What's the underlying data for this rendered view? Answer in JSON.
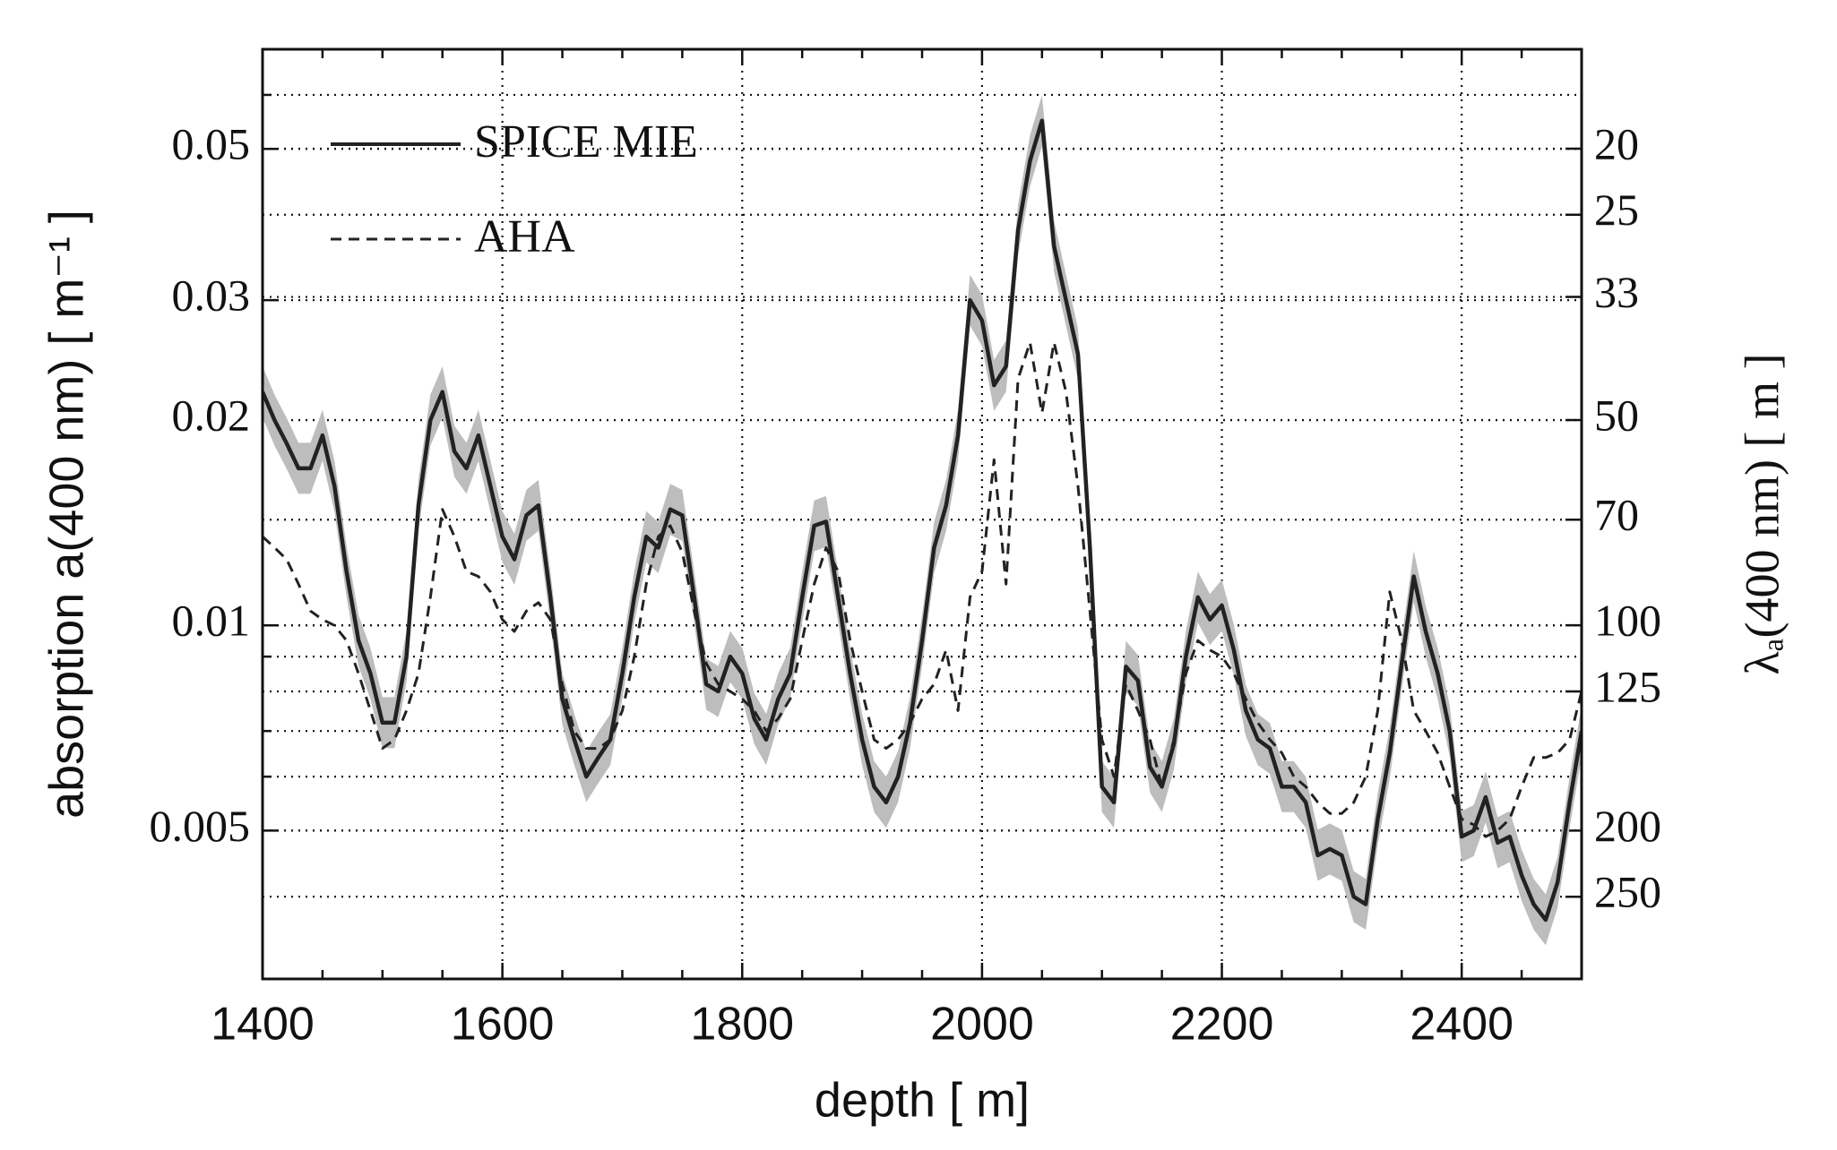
{
  "chart_data": {
    "type": "line",
    "xlabel": "depth [ m]",
    "ylabel": "absorption a(400 nm) [ m⁻¹ ]",
    "y2label": "λₐ(400 nm) [ m ]",
    "xlim": [
      1400,
      2500
    ],
    "xticks": [
      1400,
      1600,
      1800,
      2000,
      2200,
      2400
    ],
    "xminorticks": [
      1450,
      1500,
      1550,
      1650,
      1700,
      1750,
      1850,
      1900,
      1950,
      2050,
      2100,
      2150,
      2250,
      2300,
      2350,
      2450
    ],
    "ylim": [
      0.00303,
      0.07
    ],
    "yscale": "log",
    "yticks": [
      0.005,
      0.01,
      0.02,
      0.03,
      0.05
    ],
    "yminorticks": [
      0.006,
      0.007,
      0.009,
      0.06
    ],
    "y2lim": [
      330,
      14.3
    ],
    "y2scale": "reciprocal",
    "y2ticks": [
      20,
      25,
      33,
      50,
      70,
      100,
      125,
      200,
      250
    ],
    "grid": true,
    "legend": "upper left",
    "x": [
      1400,
      1410,
      1420,
      1430,
      1440,
      1450,
      1460,
      1470,
      1480,
      1490,
      1500,
      1510,
      1520,
      1530,
      1540,
      1550,
      1560,
      1570,
      1580,
      1590,
      1600,
      1610,
      1620,
      1630,
      1640,
      1650,
      1660,
      1670,
      1680,
      1690,
      1700,
      1710,
      1720,
      1730,
      1740,
      1750,
      1760,
      1770,
      1780,
      1790,
      1800,
      1810,
      1820,
      1830,
      1840,
      1850,
      1860,
      1870,
      1880,
      1890,
      1900,
      1910,
      1920,
      1930,
      1940,
      1950,
      1960,
      1970,
      1980,
      1990,
      2000,
      2010,
      2020,
      2030,
      2040,
      2050,
      2060,
      2070,
      2080,
      2090,
      2100,
      2110,
      2120,
      2130,
      2140,
      2150,
      2160,
      2170,
      2180,
      2190,
      2200,
      2210,
      2220,
      2230,
      2240,
      2250,
      2260,
      2270,
      2280,
      2290,
      2300,
      2310,
      2320,
      2330,
      2340,
      2350,
      2360,
      2370,
      2380,
      2390,
      2400,
      2410,
      2420,
      2430,
      2440,
      2450,
      2460,
      2470,
      2480,
      2490,
      2500
    ],
    "series": [
      {
        "name": "SPICE MIE",
        "color": "#222222",
        "dash": "solid",
        "band_color": "#bdbdbd",
        "band_ratio": 1.09,
        "values": [
          0.022,
          0.02,
          0.0185,
          0.017,
          0.017,
          0.019,
          0.016,
          0.012,
          0.0095,
          0.0085,
          0.0072,
          0.0072,
          0.009,
          0.015,
          0.02,
          0.022,
          0.018,
          0.017,
          0.019,
          0.016,
          0.0135,
          0.0125,
          0.0145,
          0.015,
          0.011,
          0.0078,
          0.0068,
          0.006,
          0.0064,
          0.0068,
          0.0085,
          0.011,
          0.0135,
          0.013,
          0.0148,
          0.0145,
          0.011,
          0.0082,
          0.008,
          0.009,
          0.0085,
          0.0073,
          0.0068,
          0.0078,
          0.0085,
          0.011,
          0.014,
          0.0142,
          0.011,
          0.0085,
          0.0068,
          0.0058,
          0.0055,
          0.006,
          0.0072,
          0.0095,
          0.013,
          0.015,
          0.019,
          0.03,
          0.028,
          0.0225,
          0.024,
          0.038,
          0.048,
          0.055,
          0.036,
          0.03,
          0.025,
          0.013,
          0.0058,
          0.0055,
          0.0087,
          0.0083,
          0.0062,
          0.0058,
          0.0067,
          0.009,
          0.011,
          0.0102,
          0.0107,
          0.0092,
          0.0075,
          0.0068,
          0.0066,
          0.0058,
          0.0058,
          0.0055,
          0.0046,
          0.0047,
          0.0046,
          0.004,
          0.0039,
          0.0052,
          0.0065,
          0.0088,
          0.0118,
          0.0098,
          0.0085,
          0.007,
          0.0049,
          0.005,
          0.0056,
          0.0048,
          0.0049,
          0.0043,
          0.0039,
          0.0037,
          0.0042,
          0.0055,
          0.007
        ]
      },
      {
        "name": "AHA",
        "color": "#222222",
        "dash": "dashed",
        "values": [
          0.0135,
          0.013,
          0.0125,
          0.0115,
          0.0105,
          0.0102,
          0.01,
          0.0095,
          0.0085,
          0.0075,
          0.0066,
          0.0068,
          0.0075,
          0.0085,
          0.011,
          0.0148,
          0.0135,
          0.012,
          0.0118,
          0.0112,
          0.0102,
          0.0098,
          0.0105,
          0.0108,
          0.0102,
          0.0082,
          0.007,
          0.0066,
          0.0066,
          0.0068,
          0.0075,
          0.009,
          0.0115,
          0.0135,
          0.014,
          0.0128,
          0.0105,
          0.0088,
          0.0082,
          0.008,
          0.0078,
          0.0075,
          0.007,
          0.0073,
          0.0078,
          0.0095,
          0.0115,
          0.013,
          0.012,
          0.0095,
          0.008,
          0.0068,
          0.0066,
          0.0068,
          0.0072,
          0.0078,
          0.0082,
          0.0092,
          0.0075,
          0.011,
          0.012,
          0.0175,
          0.0115,
          0.023,
          0.026,
          0.0205,
          0.026,
          0.022,
          0.016,
          0.0105,
          0.0068,
          0.006,
          0.0082,
          0.0075,
          0.0068,
          0.0058,
          0.0068,
          0.0085,
          0.0095,
          0.0092,
          0.009,
          0.0085,
          0.0078,
          0.0072,
          0.0068,
          0.0065,
          0.006,
          0.0058,
          0.0055,
          0.0053,
          0.0053,
          0.0055,
          0.006,
          0.0075,
          0.0112,
          0.0095,
          0.0075,
          0.007,
          0.0065,
          0.0058,
          0.0052,
          0.0051,
          0.0049,
          0.005,
          0.0052,
          0.0058,
          0.0064,
          0.0064,
          0.0065,
          0.0068,
          0.008
        ]
      }
    ]
  }
}
